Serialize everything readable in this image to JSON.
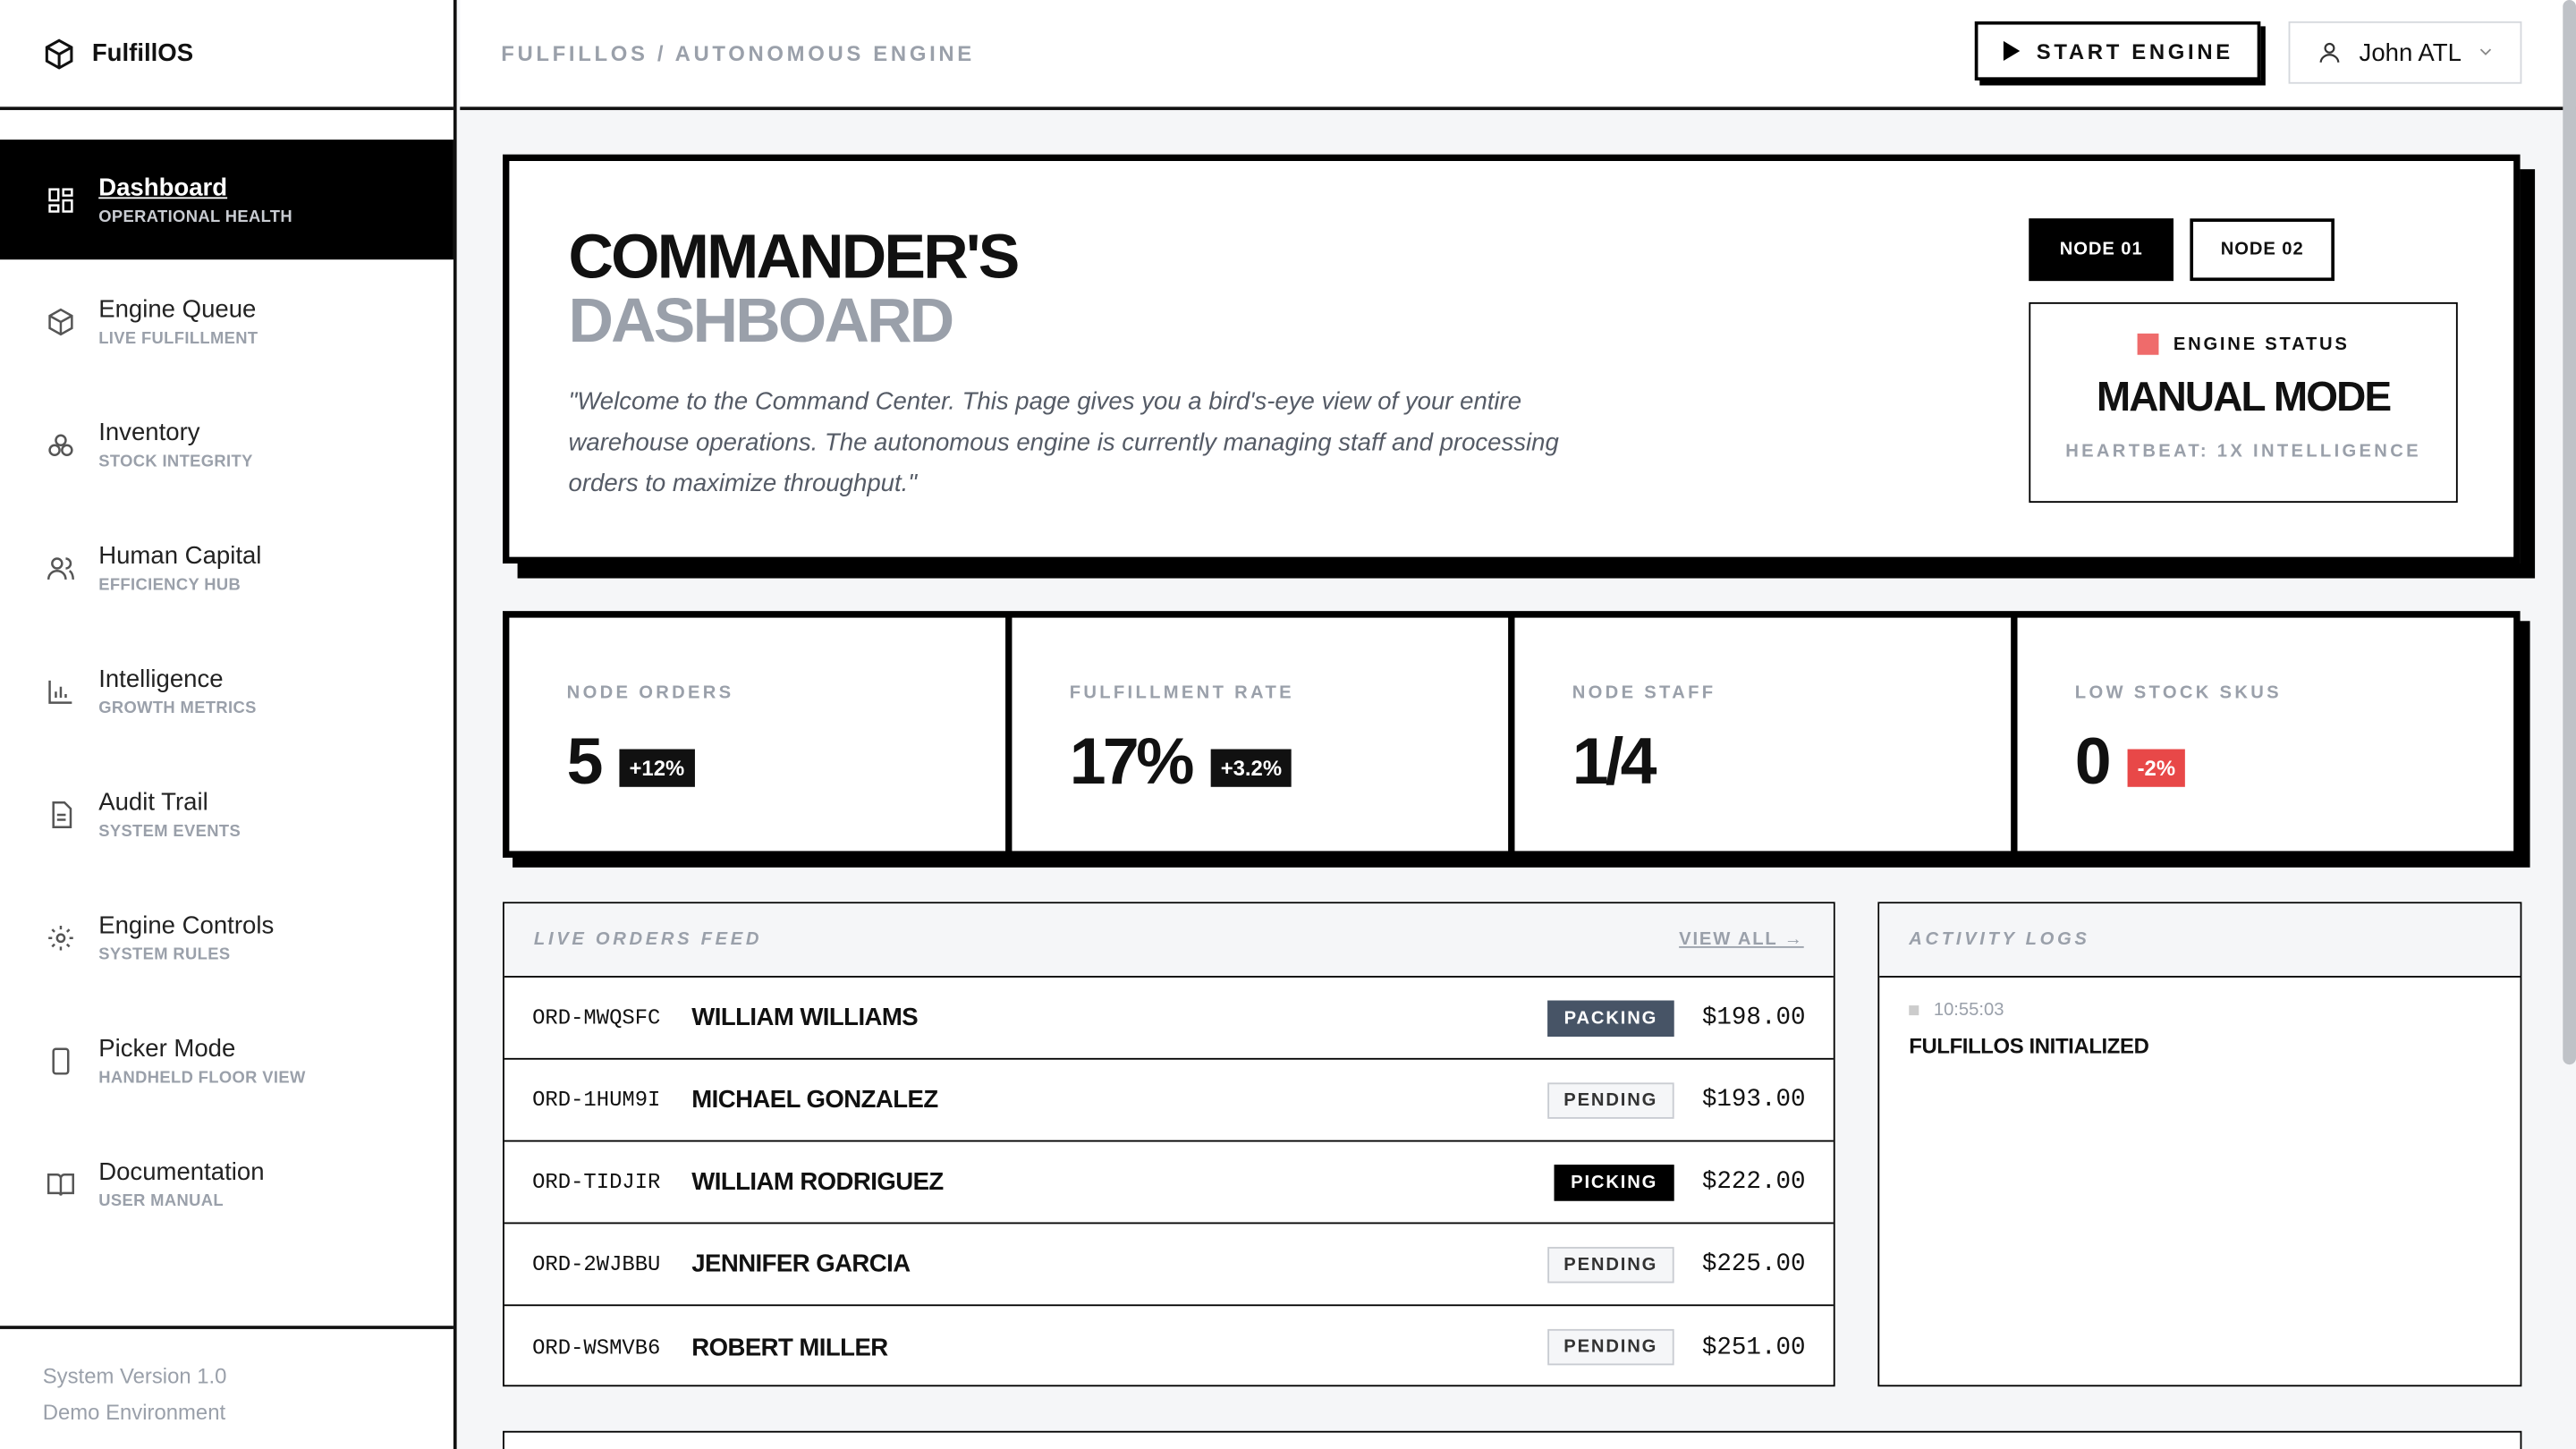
{
  "brand": "FulfillOS",
  "nav": [
    {
      "label": "Dashboard",
      "sub": "OPERATIONAL HEALTH"
    },
    {
      "label": "Engine Queue",
      "sub": "LIVE FULFILLMENT"
    },
    {
      "label": "Inventory",
      "sub": "STOCK INTEGRITY"
    },
    {
      "label": "Human Capital",
      "sub": "EFFICIENCY HUB"
    },
    {
      "label": "Intelligence",
      "sub": "GROWTH METRICS"
    },
    {
      "label": "Audit Trail",
      "sub": "SYSTEM EVENTS"
    },
    {
      "label": "Engine Controls",
      "sub": "SYSTEM RULES"
    },
    {
      "label": "Picker Mode",
      "sub": "HANDHELD FLOOR VIEW"
    },
    {
      "label": "Documentation",
      "sub": "USER MANUAL"
    }
  ],
  "footer": [
    "System Version 1.0",
    "Demo Environment"
  ],
  "header": {
    "breadcrumb": "FULFILLOS / AUTONOMOUS ENGINE",
    "button": "START ENGINE",
    "user": "John ATL"
  },
  "hero": {
    "title": "COMMANDER'S",
    "title_sub": "DASHBOARD",
    "description": "\"Welcome to the Command Center. This page gives you a bird's-eye view of your entire warehouse operations. The autonomous engine is currently managing staff and processing orders to maximize throughput.\"",
    "nodes": [
      "NODE 01",
      "NODE 02"
    ],
    "status_label": "ENGINE STATUS",
    "status": "MANUAL MODE",
    "heartbeat": "HEARTBEAT: 1X INTELLIGENCE"
  },
  "stats": [
    {
      "label": "NODE ORDERS",
      "value": "5",
      "delta": "+12%"
    },
    {
      "label": "FULFILLMENT RATE",
      "value": "17%",
      "delta": "+3.2%"
    },
    {
      "label": "NODE STAFF",
      "value": "1/4"
    },
    {
      "label": "LOW STOCK SKUS",
      "value": "0",
      "delta": "-2%"
    }
  ],
  "orders": {
    "title": "LIVE ORDERS FEED",
    "link": "VIEW ALL →",
    "rows": [
      [
        "ORD-MWQSFC",
        "WILLIAM WILLIAMS",
        "PACKING",
        "$198.00"
      ],
      [
        "ORD-1HUM9I",
        "MICHAEL GONZALEZ",
        "PENDING",
        "$193.00"
      ],
      [
        "ORD-TIDJIR",
        "WILLIAM RODRIGUEZ",
        "PICKING",
        "$222.00"
      ],
      [
        "ORD-2WJBBU",
        "JENNIFER GARCIA",
        "PENDING",
        "$225.00"
      ],
      [
        "ORD-WSMVB6",
        "ROBERT MILLER",
        "PENDING",
        "$251.00"
      ]
    ]
  },
  "activity": {
    "title": "ACTIVITY LOGS",
    "entries": [
      {
        "time": "10:55:03",
        "message": "FULFILLOS INITIALIZED"
      }
    ]
  }
}
